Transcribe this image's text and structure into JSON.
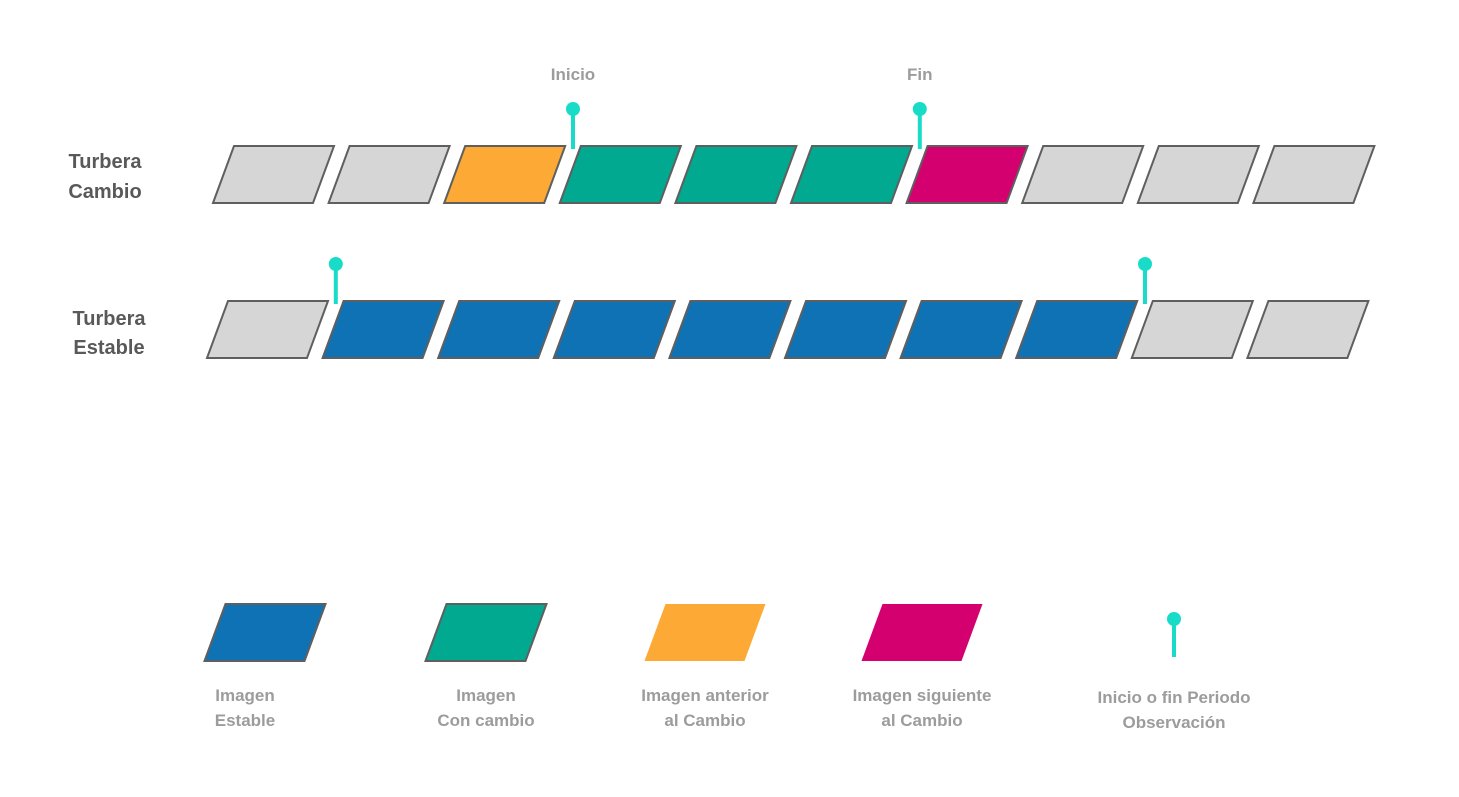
{
  "colors": {
    "gray": "#d6d6d6",
    "orange": "#fcaa35",
    "green": "#00a98f",
    "pink": "#d5006f",
    "blue": "#0f72b5",
    "marker": "#19dcc8",
    "outline": "#5f5f5f",
    "row_label_text": "#595959",
    "legend_text": "#9c9c9c"
  },
  "rows": [
    {
      "id": "turbera-cambio",
      "label_line1": "Turbera",
      "label_line2": "Cambio",
      "cells": [
        "gray",
        "gray",
        "orange",
        "green",
        "green",
        "green",
        "pink",
        "gray",
        "gray",
        "gray"
      ],
      "markers": [
        {
          "id": "inicio",
          "label": "Inicio",
          "after_cell": 2
        },
        {
          "id": "fin",
          "label": "Fin",
          "after_cell": 5
        }
      ]
    },
    {
      "id": "turbera-estable",
      "label_line1": "Turbera",
      "label_line2": "Estable",
      "cells": [
        "gray",
        "blue",
        "blue",
        "blue",
        "blue",
        "blue",
        "blue",
        "blue",
        "gray",
        "gray"
      ],
      "markers": [
        {
          "id": "start",
          "label": "",
          "after_cell": 0
        },
        {
          "id": "end",
          "label": "",
          "after_cell": 7
        }
      ]
    }
  ],
  "legend": [
    {
      "id": "estable",
      "kind": "cell",
      "color": "blue",
      "outlined": true,
      "line1": "Imagen",
      "line2": "Estable"
    },
    {
      "id": "con-cambio",
      "kind": "cell",
      "color": "green",
      "outlined": true,
      "line1": "Imagen",
      "line2": "Con cambio"
    },
    {
      "id": "anterior",
      "kind": "cell",
      "color": "orange",
      "outlined": false,
      "line1": "Imagen anterior",
      "line2": "al Cambio"
    },
    {
      "id": "siguiente",
      "kind": "cell",
      "color": "pink",
      "outlined": false,
      "line1": "Imagen siguiente",
      "line2": "al Cambio"
    },
    {
      "id": "periodo",
      "kind": "marker",
      "color": "marker",
      "outlined": false,
      "line1": "Inicio o fin Periodo",
      "line2": "Observación"
    }
  ]
}
